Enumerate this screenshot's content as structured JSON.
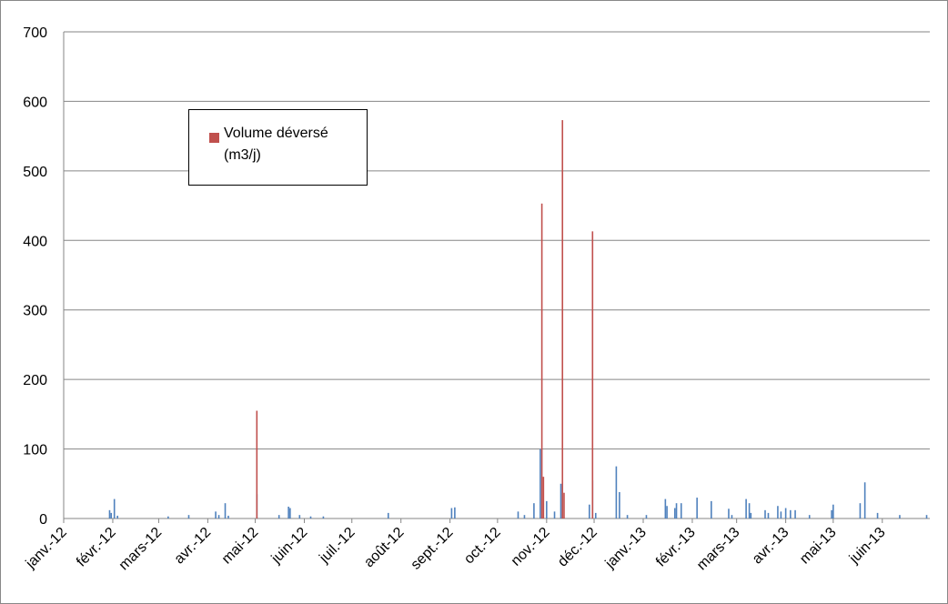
{
  "chart_data": {
    "type": "bar",
    "xlim": [
      0,
      547
    ],
    "xticks": [
      {
        "value": 0,
        "label": "janv.-12"
      },
      {
        "value": 31,
        "label": "févr.-12"
      },
      {
        "value": 60,
        "label": "mars-12"
      },
      {
        "value": 91,
        "label": "avr.-12"
      },
      {
        "value": 121,
        "label": "mai-12"
      },
      {
        "value": 152,
        "label": "juin-12"
      },
      {
        "value": 182,
        "label": "juil.-12"
      },
      {
        "value": 213,
        "label": "août-12"
      },
      {
        "value": 244,
        "label": "sept.-12"
      },
      {
        "value": 274,
        "label": "oct.-12"
      },
      {
        "value": 305,
        "label": "nov.-12"
      },
      {
        "value": 335,
        "label": "déc.-12"
      },
      {
        "value": 366,
        "label": "janv.-13"
      },
      {
        "value": 397,
        "label": "févr.-13"
      },
      {
        "value": 425,
        "label": "mars-13"
      },
      {
        "value": 456,
        "label": "avr.-13"
      },
      {
        "value": 486,
        "label": "mai-13"
      },
      {
        "value": 517,
        "label": "juin-13"
      }
    ],
    "ylim": [
      0,
      700
    ],
    "yticks": [
      0,
      100,
      200,
      300,
      400,
      500,
      600,
      700
    ],
    "grid": true,
    "legend": "top-left",
    "series": [
      {
        "color": "#4f81bd",
        "x": [
          29,
          30,
          32,
          34,
          66,
          79,
          96,
          98,
          102,
          104,
          122,
          136,
          142,
          143,
          149,
          156,
          164,
          205,
          245,
          247,
          287,
          291,
          297,
          301,
          305,
          310,
          314,
          332,
          334,
          336,
          349,
          351,
          356,
          368,
          380,
          381,
          386,
          387,
          390,
          400,
          409,
          420,
          422,
          431,
          433,
          434,
          443,
          445,
          451,
          453,
          456,
          459,
          462,
          471,
          485,
          486,
          503,
          506,
          514,
          528,
          545
        ],
        "values": [
          12,
          8,
          28,
          4,
          3,
          5,
          10,
          5,
          22,
          4,
          35,
          5,
          17,
          15,
          5,
          3,
          3,
          8,
          15,
          16,
          10,
          5,
          22,
          100,
          25,
          10,
          50,
          20,
          55,
          8,
          75,
          38,
          5,
          5,
          28,
          18,
          15,
          22,
          22,
          30,
          25,
          14,
          5,
          28,
          22,
          8,
          12,
          8,
          18,
          10,
          15,
          12,
          12,
          5,
          12,
          20,
          22,
          52,
          8,
          5,
          5
        ]
      },
      {
        "name": "Volume déversé (m3/j)",
        "color": "#c0504d",
        "x": [
          122,
          302,
          303,
          315,
          316,
          334
        ],
        "values": [
          155,
          453,
          60,
          573,
          37,
          413
        ]
      }
    ]
  }
}
